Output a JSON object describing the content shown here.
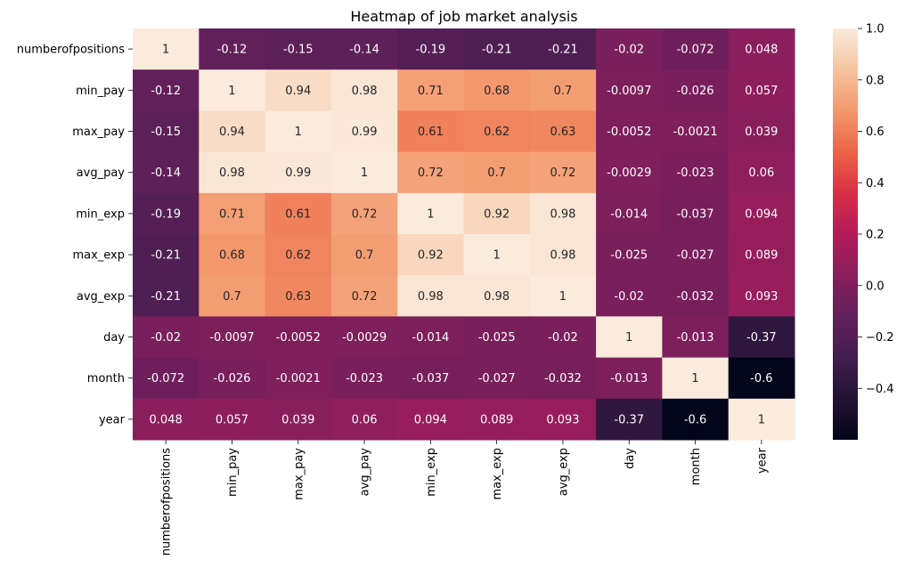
{
  "chart_data": {
    "type": "heatmap",
    "title": "Heatmap of job market analysis",
    "xlabel": "",
    "ylabel": "",
    "row_labels": [
      "numberofpositions",
      "min_pay",
      "max_pay",
      "avg_pay",
      "min_exp",
      "max_exp",
      "avg_exp",
      "day",
      "month",
      "year"
    ],
    "col_labels": [
      "numberofpositions",
      "min_pay",
      "max_pay",
      "avg_pay",
      "min_exp",
      "max_exp",
      "avg_exp",
      "day",
      "month",
      "year"
    ],
    "values": [
      [
        1,
        -0.12,
        -0.15,
        -0.14,
        -0.19,
        -0.21,
        -0.21,
        -0.02,
        -0.072,
        0.048
      ],
      [
        -0.12,
        1,
        0.94,
        0.98,
        0.71,
        0.68,
        0.7,
        -0.0097,
        -0.026,
        0.057
      ],
      [
        -0.15,
        0.94,
        1,
        0.99,
        0.61,
        0.62,
        0.63,
        -0.0052,
        -0.0021,
        0.039
      ],
      [
        -0.14,
        0.98,
        0.99,
        1,
        0.72,
        0.7,
        0.72,
        -0.0029,
        -0.023,
        0.06
      ],
      [
        -0.19,
        0.71,
        0.61,
        0.72,
        1,
        0.92,
        0.98,
        -0.014,
        -0.037,
        0.094
      ],
      [
        -0.21,
        0.68,
        0.62,
        0.7,
        0.92,
        1,
        0.98,
        -0.025,
        -0.027,
        0.089
      ],
      [
        -0.21,
        0.7,
        0.63,
        0.72,
        0.98,
        0.98,
        1,
        -0.02,
        -0.032,
        0.093
      ],
      [
        -0.02,
        -0.0097,
        -0.0052,
        -0.0029,
        -0.014,
        -0.025,
        -0.02,
        1,
        -0.013,
        -0.37
      ],
      [
        -0.072,
        -0.026,
        -0.0021,
        -0.023,
        -0.037,
        -0.027,
        -0.032,
        -0.013,
        1,
        -0.6
      ],
      [
        0.048,
        0.057,
        0.039,
        0.06,
        0.094,
        0.089,
        0.093,
        -0.37,
        -0.6,
        1
      ]
    ],
    "colormap": "rocket",
    "vmin": -0.6,
    "vmax": 1.0,
    "colorbar": {
      "ticks": [
        1.0,
        0.8,
        0.6,
        0.4,
        0.2,
        0.0,
        -0.2,
        -0.4
      ],
      "tick_labels": [
        "1.0",
        "0.8",
        "0.6",
        "0.4",
        "0.2",
        "0.0",
        "−0.2",
        "−0.4"
      ]
    },
    "annotations": true,
    "legend": "colorbar-right"
  }
}
